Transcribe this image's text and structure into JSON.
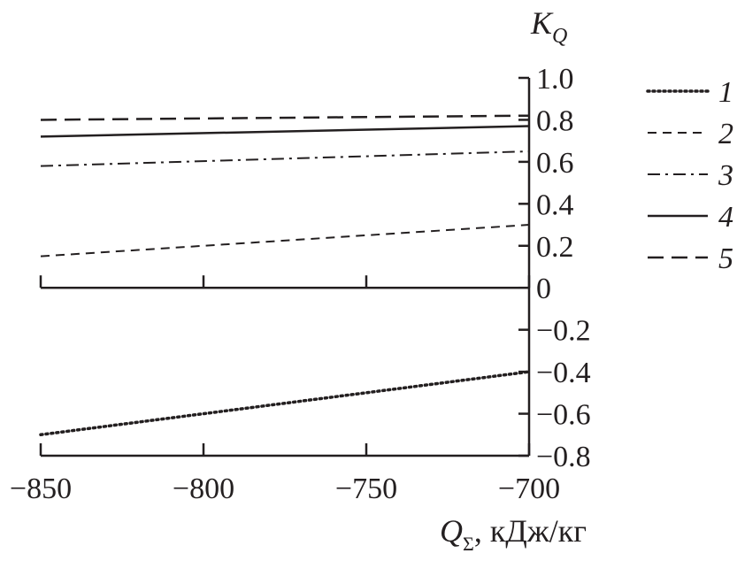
{
  "chart_data": {
    "type": "line",
    "title": "",
    "ylabel": "K",
    "ylabel_sub": "Q",
    "xlabel": "Q",
    "xlabel_sub": "Σ",
    "xlabel_units": ", кДж/кг",
    "xlim": [
      -850,
      -700
    ],
    "ylim": [
      -0.8,
      1.0
    ],
    "xticks": [
      -850,
      -800,
      -750,
      -700
    ],
    "xtick_labels": [
      "−850",
      "−800",
      "−750",
      "−700"
    ],
    "yticks": [
      1.0,
      0.8,
      0.6,
      0.4,
      0.2,
      0,
      -0.2,
      -0.4,
      -0.6,
      -0.8
    ],
    "ytick_labels": [
      "1.0",
      "0.8",
      "0.6",
      "0.4",
      "0.2",
      "0",
      "−0.2",
      "−0.4",
      "−0.6",
      "−0.8"
    ],
    "grid": false,
    "legend_position": "right",
    "series": [
      {
        "name": "1",
        "style": "dotted",
        "x": [
          -850,
          -700
        ],
        "values": [
          -0.7,
          -0.4
        ]
      },
      {
        "name": "2",
        "style": "dashed",
        "x": [
          -850,
          -700
        ],
        "values": [
          0.15,
          0.3
        ]
      },
      {
        "name": "3",
        "style": "dashdot",
        "x": [
          -850,
          -700
        ],
        "values": [
          0.58,
          0.65
        ]
      },
      {
        "name": "4",
        "style": "solid",
        "x": [
          -850,
          -700
        ],
        "values": [
          0.72,
          0.77
        ]
      },
      {
        "name": "5",
        "style": "longdash",
        "x": [
          -850,
          -700
        ],
        "values": [
          0.8,
          0.82
        ]
      }
    ],
    "color": "#231f20"
  }
}
